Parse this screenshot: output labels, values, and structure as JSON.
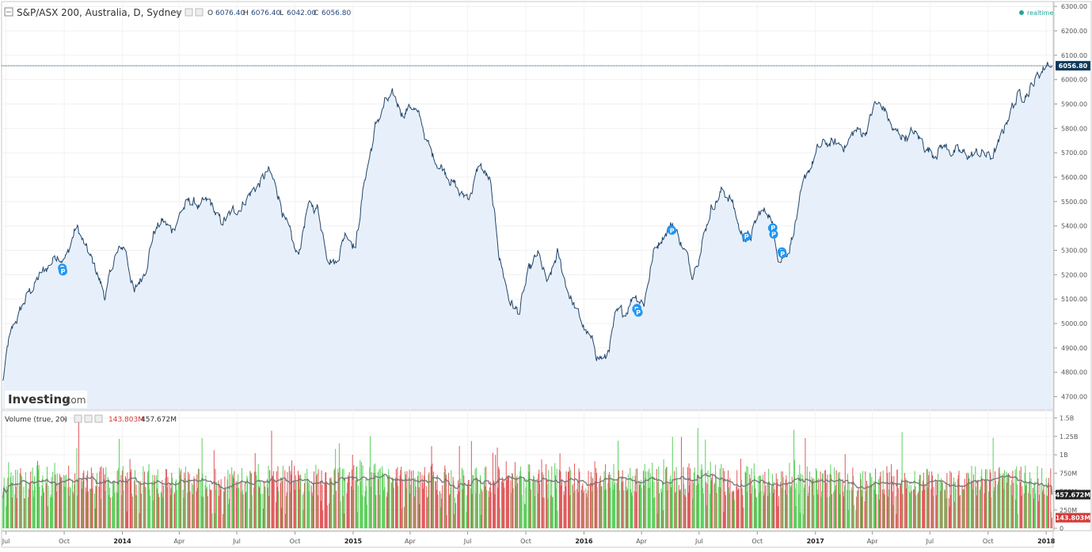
{
  "header": {
    "title": "S&P/ASX 200, Australia, D, Sydney",
    "ohlc": {
      "o_label": "O",
      "o": "6076.40",
      "h_label": "H",
      "h": "6076.40",
      "l_label": "L",
      "l": "6042.00",
      "c_label": "C",
      "c": "6056.80"
    },
    "realtime_label": "realtime"
  },
  "watermark": {
    "brand": "Investing",
    "suffix": ".com"
  },
  "colors": {
    "price_line": "#23466b",
    "area_fill": "#e7f0fa",
    "marker": "#2196f3",
    "volume_up": "#5ccf5c",
    "volume_down": "#e0585b",
    "volume_ma": "#7a7a7a",
    "last_price_bg": "#0c3a5b",
    "last_volume_bg": "#d43a3a",
    "realtime_dot": "#26a69a"
  },
  "chart_data": [
    {
      "type": "area",
      "name": "price",
      "ylim": [
        4650,
        6320
      ],
      "y_ticks": [
        4700,
        4800,
        4900,
        5000,
        5100,
        5200,
        5300,
        5400,
        5500,
        5600,
        5700,
        5800,
        5900,
        6000,
        6100,
        6200,
        6300
      ],
      "y_tick_labels": [
        "4700.00",
        "4800.00",
        "4900.00",
        "5000.00",
        "5100.00",
        "5200.00",
        "5300.00",
        "5400.00",
        "5500.00",
        "5600.00",
        "5700.00",
        "5800.00",
        "5900.00",
        "6000.00",
        "6100.00",
        "6200.00",
        "6300.00"
      ],
      "last_price": 6056.8,
      "last_price_label": "6056.80",
      "x_tick_labels": [
        "Jul",
        "Oct",
        "2014",
        "Apr",
        "Jul",
        "Oct",
        "2015",
        "Apr",
        "Jul",
        "Oct",
        "2016",
        "Apr",
        "Jul",
        "Oct",
        "2017",
        "Apr",
        "Jul",
        "Oct",
        "2018"
      ],
      "x_tick_dates": [
        "2013-07-01",
        "2013-10-01",
        "2014-01-01",
        "2014-04-01",
        "2014-07-01",
        "2014-10-01",
        "2015-01-01",
        "2015-04-01",
        "2015-07-01",
        "2015-10-01",
        "2016-01-01",
        "2016-04-01",
        "2016-07-01",
        "2016-10-01",
        "2017-01-01",
        "2017-04-01",
        "2017-07-01",
        "2017-10-01",
        "2018-01-01"
      ],
      "x": [
        "2013-06-26",
        "2013-07-05",
        "2013-07-20",
        "2013-08-05",
        "2013-08-20",
        "2013-09-05",
        "2013-09-20",
        "2013-10-05",
        "2013-10-20",
        "2013-11-05",
        "2013-11-20",
        "2013-12-05",
        "2013-12-20",
        "2014-01-05",
        "2014-01-20",
        "2014-02-05",
        "2014-02-20",
        "2014-03-05",
        "2014-03-20",
        "2014-04-05",
        "2014-04-20",
        "2014-05-05",
        "2014-05-20",
        "2014-06-05",
        "2014-06-20",
        "2014-07-05",
        "2014-07-20",
        "2014-08-05",
        "2014-08-20",
        "2014-09-05",
        "2014-09-20",
        "2014-10-05",
        "2014-10-20",
        "2014-11-05",
        "2014-11-20",
        "2014-12-05",
        "2014-12-20",
        "2015-01-05",
        "2015-01-20",
        "2015-02-05",
        "2015-02-20",
        "2015-03-05",
        "2015-03-20",
        "2015-04-05",
        "2015-04-20",
        "2015-05-05",
        "2015-05-20",
        "2015-06-05",
        "2015-06-20",
        "2015-07-05",
        "2015-07-20",
        "2015-08-05",
        "2015-08-20",
        "2015-09-05",
        "2015-09-20",
        "2015-10-05",
        "2015-10-20",
        "2015-11-05",
        "2015-11-20",
        "2015-12-05",
        "2015-12-20",
        "2016-01-05",
        "2016-01-20",
        "2016-02-05",
        "2016-02-20",
        "2016-03-05",
        "2016-03-20",
        "2016-04-05",
        "2016-04-20",
        "2016-05-05",
        "2016-05-20",
        "2016-06-05",
        "2016-06-20",
        "2016-07-05",
        "2016-07-20",
        "2016-08-05",
        "2016-08-20",
        "2016-09-05",
        "2016-09-20",
        "2016-10-05",
        "2016-10-20",
        "2016-11-05",
        "2016-11-20",
        "2016-12-05",
        "2016-12-20",
        "2017-01-05",
        "2017-01-20",
        "2017-02-05",
        "2017-02-20",
        "2017-03-05",
        "2017-03-20",
        "2017-04-05",
        "2017-04-20",
        "2017-05-05",
        "2017-05-20",
        "2017-06-05",
        "2017-06-20",
        "2017-07-05",
        "2017-07-20",
        "2017-08-05",
        "2017-08-20",
        "2017-09-05",
        "2017-09-20",
        "2017-10-05",
        "2017-10-20",
        "2017-11-05",
        "2017-11-20",
        "2017-12-05",
        "2017-12-20",
        "2018-01-05",
        "2018-01-10"
      ],
      "y": [
        4760,
        4920,
        5030,
        5120,
        5180,
        5230,
        5290,
        5270,
        5400,
        5300,
        5220,
        5110,
        5270,
        5320,
        5120,
        5220,
        5380,
        5420,
        5380,
        5470,
        5500,
        5480,
        5490,
        5410,
        5440,
        5480,
        5530,
        5570,
        5620,
        5530,
        5380,
        5260,
        5470,
        5480,
        5300,
        5250,
        5380,
        5330,
        5600,
        5800,
        5900,
        5920,
        5870,
        5900,
        5810,
        5690,
        5650,
        5600,
        5520,
        5530,
        5650,
        5580,
        5280,
        5100,
        5040,
        5200,
        5280,
        5150,
        5280,
        5150,
        5050,
        4960,
        4880,
        4850,
        5020,
        5040,
        5130,
        5090,
        5290,
        5370,
        5410,
        5320,
        5210,
        5330,
        5480,
        5540,
        5520,
        5370,
        5350,
        5450,
        5460,
        5270,
        5310,
        5470,
        5620,
        5710,
        5740,
        5730,
        5740,
        5790,
        5780,
        5900,
        5880,
        5780,
        5770,
        5780,
        5740,
        5700,
        5730,
        5710,
        5690,
        5690,
        5700,
        5680,
        5740,
        5880,
        5940,
        5960,
        6020,
        6080,
        6056.8
      ]
    },
    {
      "type": "bar",
      "name": "Volume (true, 20)",
      "legend_value_down": "143.803M",
      "legend_value_ma": "457.672M",
      "ylim": [
        0,
        1560000000
      ],
      "y_ticks": [
        0,
        250000000,
        500000000,
        750000000,
        1000000000,
        1250000000,
        1500000000
      ],
      "y_tick_labels": [
        "0",
        "250M",
        "500M",
        "750M",
        "1B",
        "1.25B",
        "1.5B"
      ],
      "last_ma": 457672000,
      "last_ma_label": "457.672M",
      "last_volume": 143803000,
      "last_volume_label": "143.803M",
      "ma_period": 20
    }
  ]
}
